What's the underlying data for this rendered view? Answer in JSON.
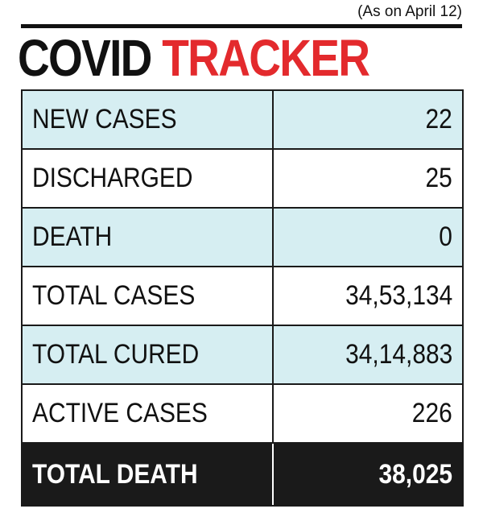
{
  "header": {
    "as_on": "(As on April 12)",
    "title_part1": "COVID",
    "title_part2": "TRACKER"
  },
  "colors": {
    "title_dark": "#111111",
    "title_accent": "#e32a2d",
    "row_shade": "#d6eef2",
    "total_row_bg": "#1a1a1a"
  },
  "rows": [
    {
      "label": "NEW CASES",
      "value": "22"
    },
    {
      "label": "DISCHARGED",
      "value": "25"
    },
    {
      "label": "DEATH",
      "value": "0"
    },
    {
      "label": "TOTAL CASES",
      "value": "34,53,134"
    },
    {
      "label": "TOTAL CURED",
      "value": "34,14,883"
    },
    {
      "label": "ACTIVE CASES",
      "value": "226"
    },
    {
      "label": "TOTAL DEATH",
      "value": "38,025"
    }
  ]
}
